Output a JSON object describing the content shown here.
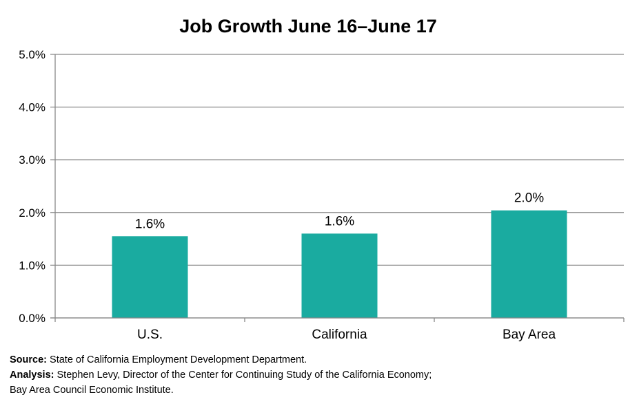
{
  "chart_data": {
    "type": "bar",
    "title": "Job Growth June 16–June 17",
    "categories": [
      "U.S.",
      "California",
      "Bay Area"
    ],
    "values": [
      1.55,
      1.6,
      2.04
    ],
    "data_labels": [
      "1.6%",
      "1.6%",
      "2.0%"
    ],
    "ylim": [
      0,
      5
    ],
    "yticks": [
      0,
      1,
      2,
      3,
      4,
      5
    ],
    "ytick_labels": [
      "0.0%",
      "1.0%",
      "2.0%",
      "3.0%",
      "4.0%",
      "5.0%"
    ],
    "xlabel": "",
    "ylabel": "",
    "grid": true,
    "legend": "none",
    "bar_color": "#1aaba0"
  },
  "notes": {
    "source_label": "Source:",
    "source_text": "State of California Employment Development Department.",
    "analysis_label": "Analysis:",
    "analysis_text": "Stephen Levy, Director of the Center for Continuing Study of the California Economy;",
    "analysis_text_2": "Bay Area Council Economic Institute."
  }
}
